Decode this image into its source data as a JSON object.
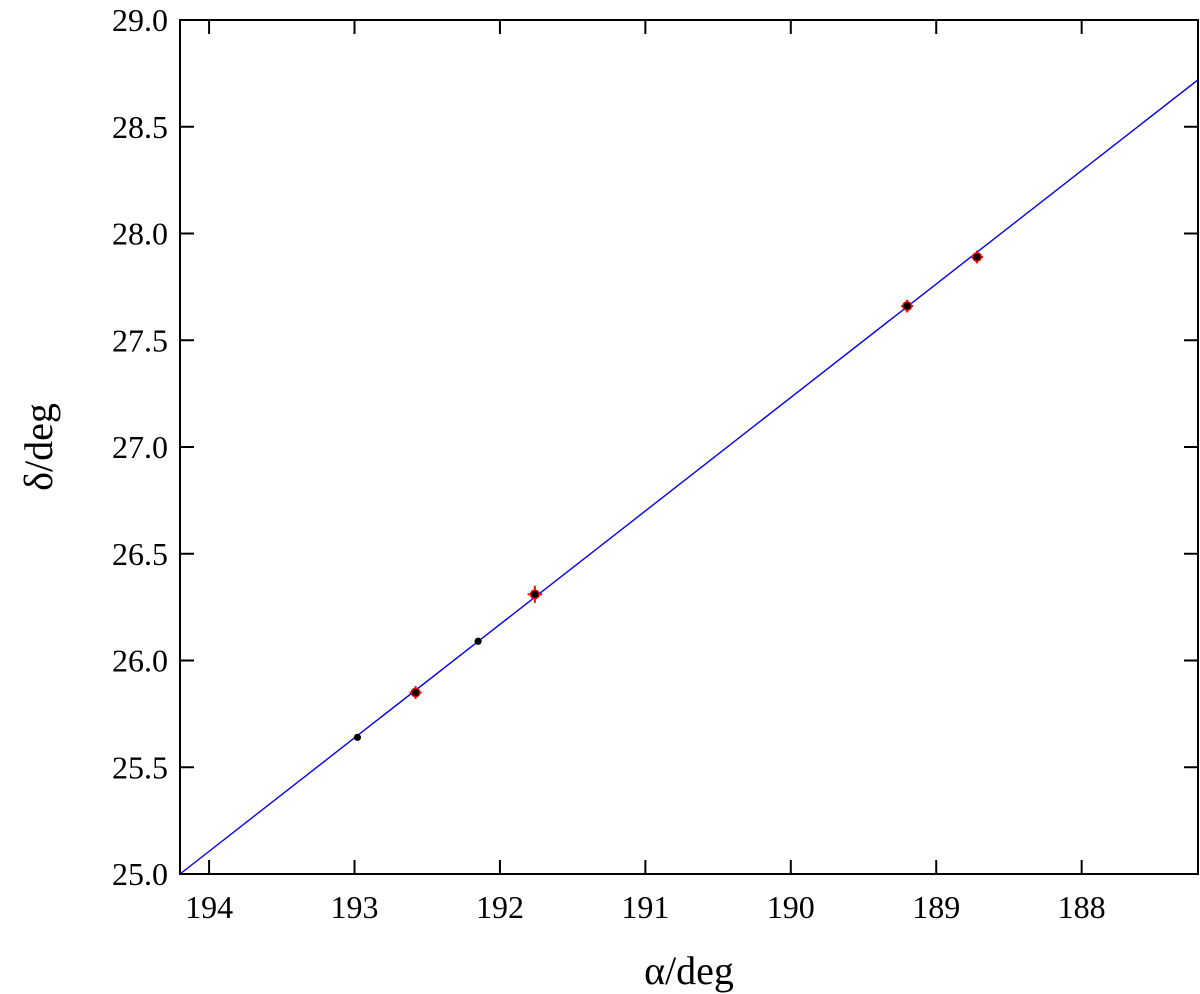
{
  "chart_data": {
    "type": "scatter",
    "title": "",
    "xlabel": "α/deg",
    "ylabel": "δ/deg",
    "xlim": [
      194.2,
      187.2
    ],
    "ylim": [
      25.0,
      29.0
    ],
    "x_reversed": true,
    "x_ticks": [
      194,
      193,
      192,
      191,
      190,
      189,
      188
    ],
    "y_ticks": [
      "25.0",
      "25.5",
      "26.0",
      "26.5",
      "27.0",
      "27.5",
      "28.0",
      "28.5",
      "29.0"
    ],
    "grid": false,
    "legend": "none",
    "fit_line": {
      "color": "#0000ee",
      "points": [
        [
          194.2,
          25.0
        ],
        [
          187.2,
          28.72
        ]
      ]
    },
    "series": [
      {
        "marker": "filled-circle",
        "color": "#000000",
        "points": [
          [
            192.98,
            25.64
          ],
          [
            192.58,
            25.85
          ],
          [
            192.15,
            26.09
          ],
          [
            191.76,
            26.31
          ],
          [
            189.2,
            27.66
          ],
          [
            188.72,
            27.89
          ]
        ]
      },
      {
        "marker": "red-error-cross",
        "color": "#ff0000",
        "points": [
          {
            "x": 192.58,
            "y": 25.85,
            "xerr": 0.04,
            "yerr": 0.03
          },
          {
            "x": 191.76,
            "y": 26.31,
            "xerr": 0.05,
            "yerr": 0.04
          },
          {
            "x": 189.2,
            "y": 27.66,
            "xerr": 0.04,
            "yerr": 0.03
          },
          {
            "x": 188.72,
            "y": 27.89,
            "xerr": 0.04,
            "yerr": 0.03
          }
        ]
      }
    ]
  }
}
